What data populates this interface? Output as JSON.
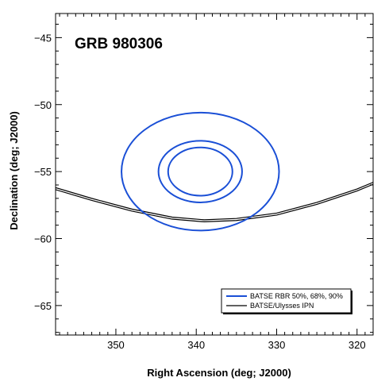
{
  "chart_data": {
    "type": "line",
    "title": "GRB 980306",
    "xlabel": "Right Ascension (deg; J2000)",
    "ylabel": "Declination (deg; J2000)",
    "xlim": [
      357.5,
      318.0
    ],
    "ylim": [
      -67.2,
      -43.2
    ],
    "x_ticks": [
      350,
      340,
      330,
      320
    ],
    "y_ticks": [
      -45,
      -50,
      -55,
      -60,
      -65
    ],
    "x_tick_labels": [
      "350",
      "340",
      "330",
      "320"
    ],
    "y_tick_labels": [
      "−45",
      "−50",
      "−55",
      "−60",
      "−65"
    ],
    "grid": false,
    "legend_position": "bottom-right",
    "colors": {
      "batse": "#1a4fd6",
      "ipn": "#000000"
    },
    "series": [
      {
        "name": "BATSE RBR 50%, 68%, 90%",
        "kind": "error-circles",
        "center": [
          339.5,
          -55.0
        ],
        "radii": [
          {
            "dec": 1.8,
            "ra": 4.0
          },
          {
            "dec": 2.3,
            "ra": 5.2
          },
          {
            "dec": 4.4,
            "ra": 9.8
          }
        ]
      },
      {
        "name": "BATSE/Ulysses IPN",
        "kind": "annulus-edges",
        "lines": [
          [
            [
              357.5,
              -56.2
            ],
            [
              353,
              -57.0
            ],
            [
              348,
              -57.8
            ],
            [
              343,
              -58.4
            ],
            [
              339,
              -58.6
            ],
            [
              335,
              -58.5
            ],
            [
              330,
              -58.1
            ],
            [
              325,
              -57.3
            ],
            [
              320,
              -56.3
            ],
            [
              318,
              -55.8
            ]
          ],
          [
            [
              357.5,
              -56.35
            ],
            [
              353,
              -57.15
            ],
            [
              348,
              -57.95
            ],
            [
              343,
              -58.55
            ],
            [
              339,
              -58.75
            ],
            [
              335,
              -58.65
            ],
            [
              330,
              -58.25
            ],
            [
              325,
              -57.45
            ],
            [
              320,
              -56.45
            ],
            [
              318,
              -55.95
            ]
          ]
        ]
      }
    ]
  }
}
